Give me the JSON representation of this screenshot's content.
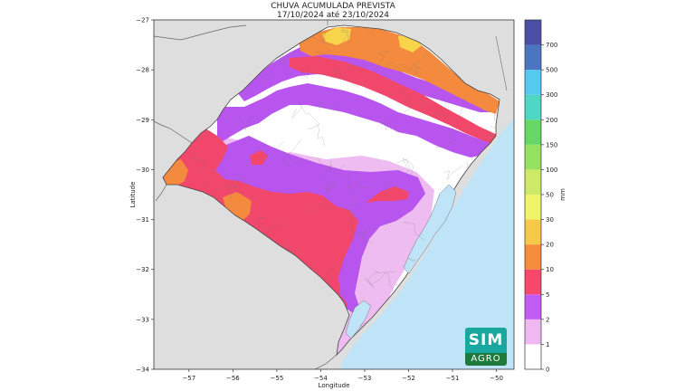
{
  "map": {
    "title_line1": "CHUVA ACUMULADA PREVISTA",
    "title_line2": "17/10/2024 até 23/10/2024",
    "xlabel": "Longitude",
    "ylabel": "Latitude",
    "xlim": [
      -57.8,
      -49.6
    ],
    "ylim": [
      -34,
      -27
    ],
    "x_ticks": [
      "−57",
      "−56",
      "−55",
      "−54",
      "−53",
      "−52",
      "−51",
      "−50"
    ],
    "y_ticks": [
      "−27",
      "−28",
      "−29",
      "−30",
      "−31",
      "−32",
      "−33",
      "−34"
    ],
    "colors": {
      "land_outside": "#dedede",
      "ocean": "#bfe3f7",
      "class_0_1": "#ffffff",
      "class_1_2": "#eebcf0",
      "class_2_5": "#b855ee",
      "class_5_10": "#f1476a",
      "class_10_20": "#f48a3e",
      "class_20_30": "#f7d44a"
    }
  },
  "colorbar": {
    "unit": "mm",
    "levels": [
      "0",
      "1",
      "2",
      "5",
      "10",
      "20",
      "30",
      "50",
      "100",
      "150",
      "200",
      "300",
      "500",
      "700"
    ],
    "colors": [
      "#ffffff",
      "#f0b8f0",
      "#c35bf5",
      "#f5486a",
      "#f58b3c",
      "#f6c94a",
      "#eff46b",
      "#cde967",
      "#97e161",
      "#65d765",
      "#4fd6c5",
      "#55c9f0",
      "#4b74c2",
      "#4b4da8"
    ]
  },
  "logo": {
    "line1": "SIM",
    "line2": "AGRO"
  }
}
